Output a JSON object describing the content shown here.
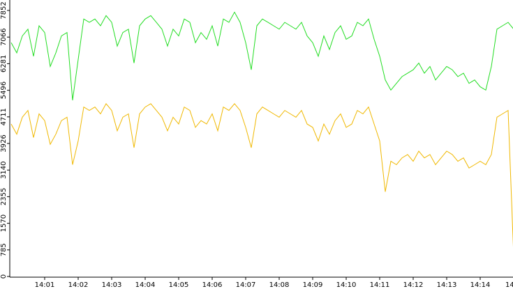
{
  "chart_data": {
    "type": "line",
    "x": [
      0,
      0.1667,
      0.3333,
      0.5,
      0.6667,
      0.8333,
      1,
      1.1667,
      1.3333,
      1.5,
      1.6667,
      1.8333,
      2,
      2.1667,
      2.3333,
      2.5,
      2.6667,
      2.8333,
      3,
      3.1667,
      3.3333,
      3.5,
      3.6667,
      3.8333,
      4,
      4.1667,
      4.3333,
      4.5,
      4.6667,
      4.8333,
      5,
      5.1667,
      5.3333,
      5.5,
      5.6667,
      5.8333,
      6,
      6.1667,
      6.3333,
      6.5,
      6.6667,
      6.8333,
      7,
      7.1667,
      7.3333,
      7.5,
      7.6667,
      7.8333,
      8,
      8.1667,
      8.3333,
      8.5,
      8.6667,
      8.8333,
      9,
      9.1667,
      9.3333,
      9.5,
      9.6667,
      9.8333,
      10,
      10.1667,
      10.3333,
      10.5,
      10.6667,
      10.8333,
      11,
      11.1667,
      11.3333,
      11.5,
      11.6667,
      11.8333,
      12,
      12.1667,
      12.3333,
      12.5,
      12.6667,
      12.8333,
      13,
      13.1667,
      13.3333,
      13.5,
      13.6667,
      13.8333,
      14,
      14.1667,
      14.3333,
      14.5,
      14.6667,
      14.8333,
      15
    ],
    "series": [
      {
        "color": "#22dd22",
        "values": [
          6900,
          6600,
          7100,
          7300,
          6500,
          7400,
          7200,
          6200,
          6600,
          7100,
          7200,
          5200,
          6400,
          7600,
          7500,
          7600,
          7400,
          7700,
          7500,
          6800,
          7200,
          7300,
          6300,
          7400,
          7600,
          7700,
          7500,
          7300,
          6800,
          7300,
          7100,
          7600,
          7500,
          6900,
          7200,
          7000,
          7400,
          6800,
          7600,
          7500,
          7800,
          7500,
          6900,
          6100,
          7400,
          7600,
          7500,
          7400,
          7300,
          7500,
          7400,
          7300,
          7500,
          7100,
          6900,
          6500,
          7100,
          6700,
          7200,
          7400,
          7000,
          7100,
          7500,
          7400,
          7600,
          7000,
          6500,
          5800,
          5500,
          5700,
          5900,
          6000,
          6100,
          6300,
          6000,
          6200,
          5800,
          6000,
          6200,
          6100,
          5900,
          6000,
          5700,
          5800,
          5600,
          5500,
          6200,
          7300,
          7400,
          7500,
          7300
        ]
      },
      {
        "color": "#f0b800",
        "values": [
          4500,
          4200,
          4700,
          4900,
          4100,
          4800,
          4600,
          3900,
          4200,
          4600,
          4700,
          3300,
          4000,
          5000,
          4900,
          5000,
          4800,
          5100,
          4900,
          4300,
          4700,
          4800,
          3800,
          4800,
          5000,
          5100,
          4900,
          4700,
          4300,
          4700,
          4500,
          5000,
          4900,
          4400,
          4600,
          4500,
          4800,
          4300,
          5000,
          4900,
          5100,
          4900,
          4400,
          3800,
          4800,
          5000,
          4900,
          4800,
          4700,
          4900,
          4800,
          4700,
          4900,
          4500,
          4400,
          4000,
          4500,
          4200,
          4600,
          4800,
          4400,
          4500,
          4900,
          4800,
          5000,
          4500,
          4000,
          2500,
          3400,
          3300,
          3500,
          3600,
          3400,
          3700,
          3500,
          3600,
          3300,
          3500,
          3700,
          3600,
          3400,
          3500,
          3200,
          3300,
          3400,
          3300,
          3600,
          4700,
          4800,
          4900,
          600
        ]
      }
    ],
    "xlim": [
      0,
      15
    ],
    "ylim": [
      0,
      7852
    ],
    "xticks": [
      {
        "value": 1,
        "label": "14:01"
      },
      {
        "value": 2,
        "label": "14:02"
      },
      {
        "value": 3,
        "label": "14:03"
      },
      {
        "value": 4,
        "label": "14:04"
      },
      {
        "value": 5,
        "label": "14:05"
      },
      {
        "value": 6,
        "label": "14:06"
      },
      {
        "value": 7,
        "label": "14:07"
      },
      {
        "value": 8,
        "label": "14:08"
      },
      {
        "value": 9,
        "label": "14:09"
      },
      {
        "value": 10,
        "label": "14:10"
      },
      {
        "value": 11,
        "label": "14:11"
      },
      {
        "value": 12,
        "label": "14:12"
      },
      {
        "value": 13,
        "label": "14:13"
      },
      {
        "value": 14,
        "label": "14:14"
      },
      {
        "value": 15,
        "label": "14"
      }
    ],
    "yticks": [
      0,
      785,
      1570,
      2355,
      3140,
      3926,
      4711,
      5496,
      6281,
      7066,
      7852
    ]
  }
}
